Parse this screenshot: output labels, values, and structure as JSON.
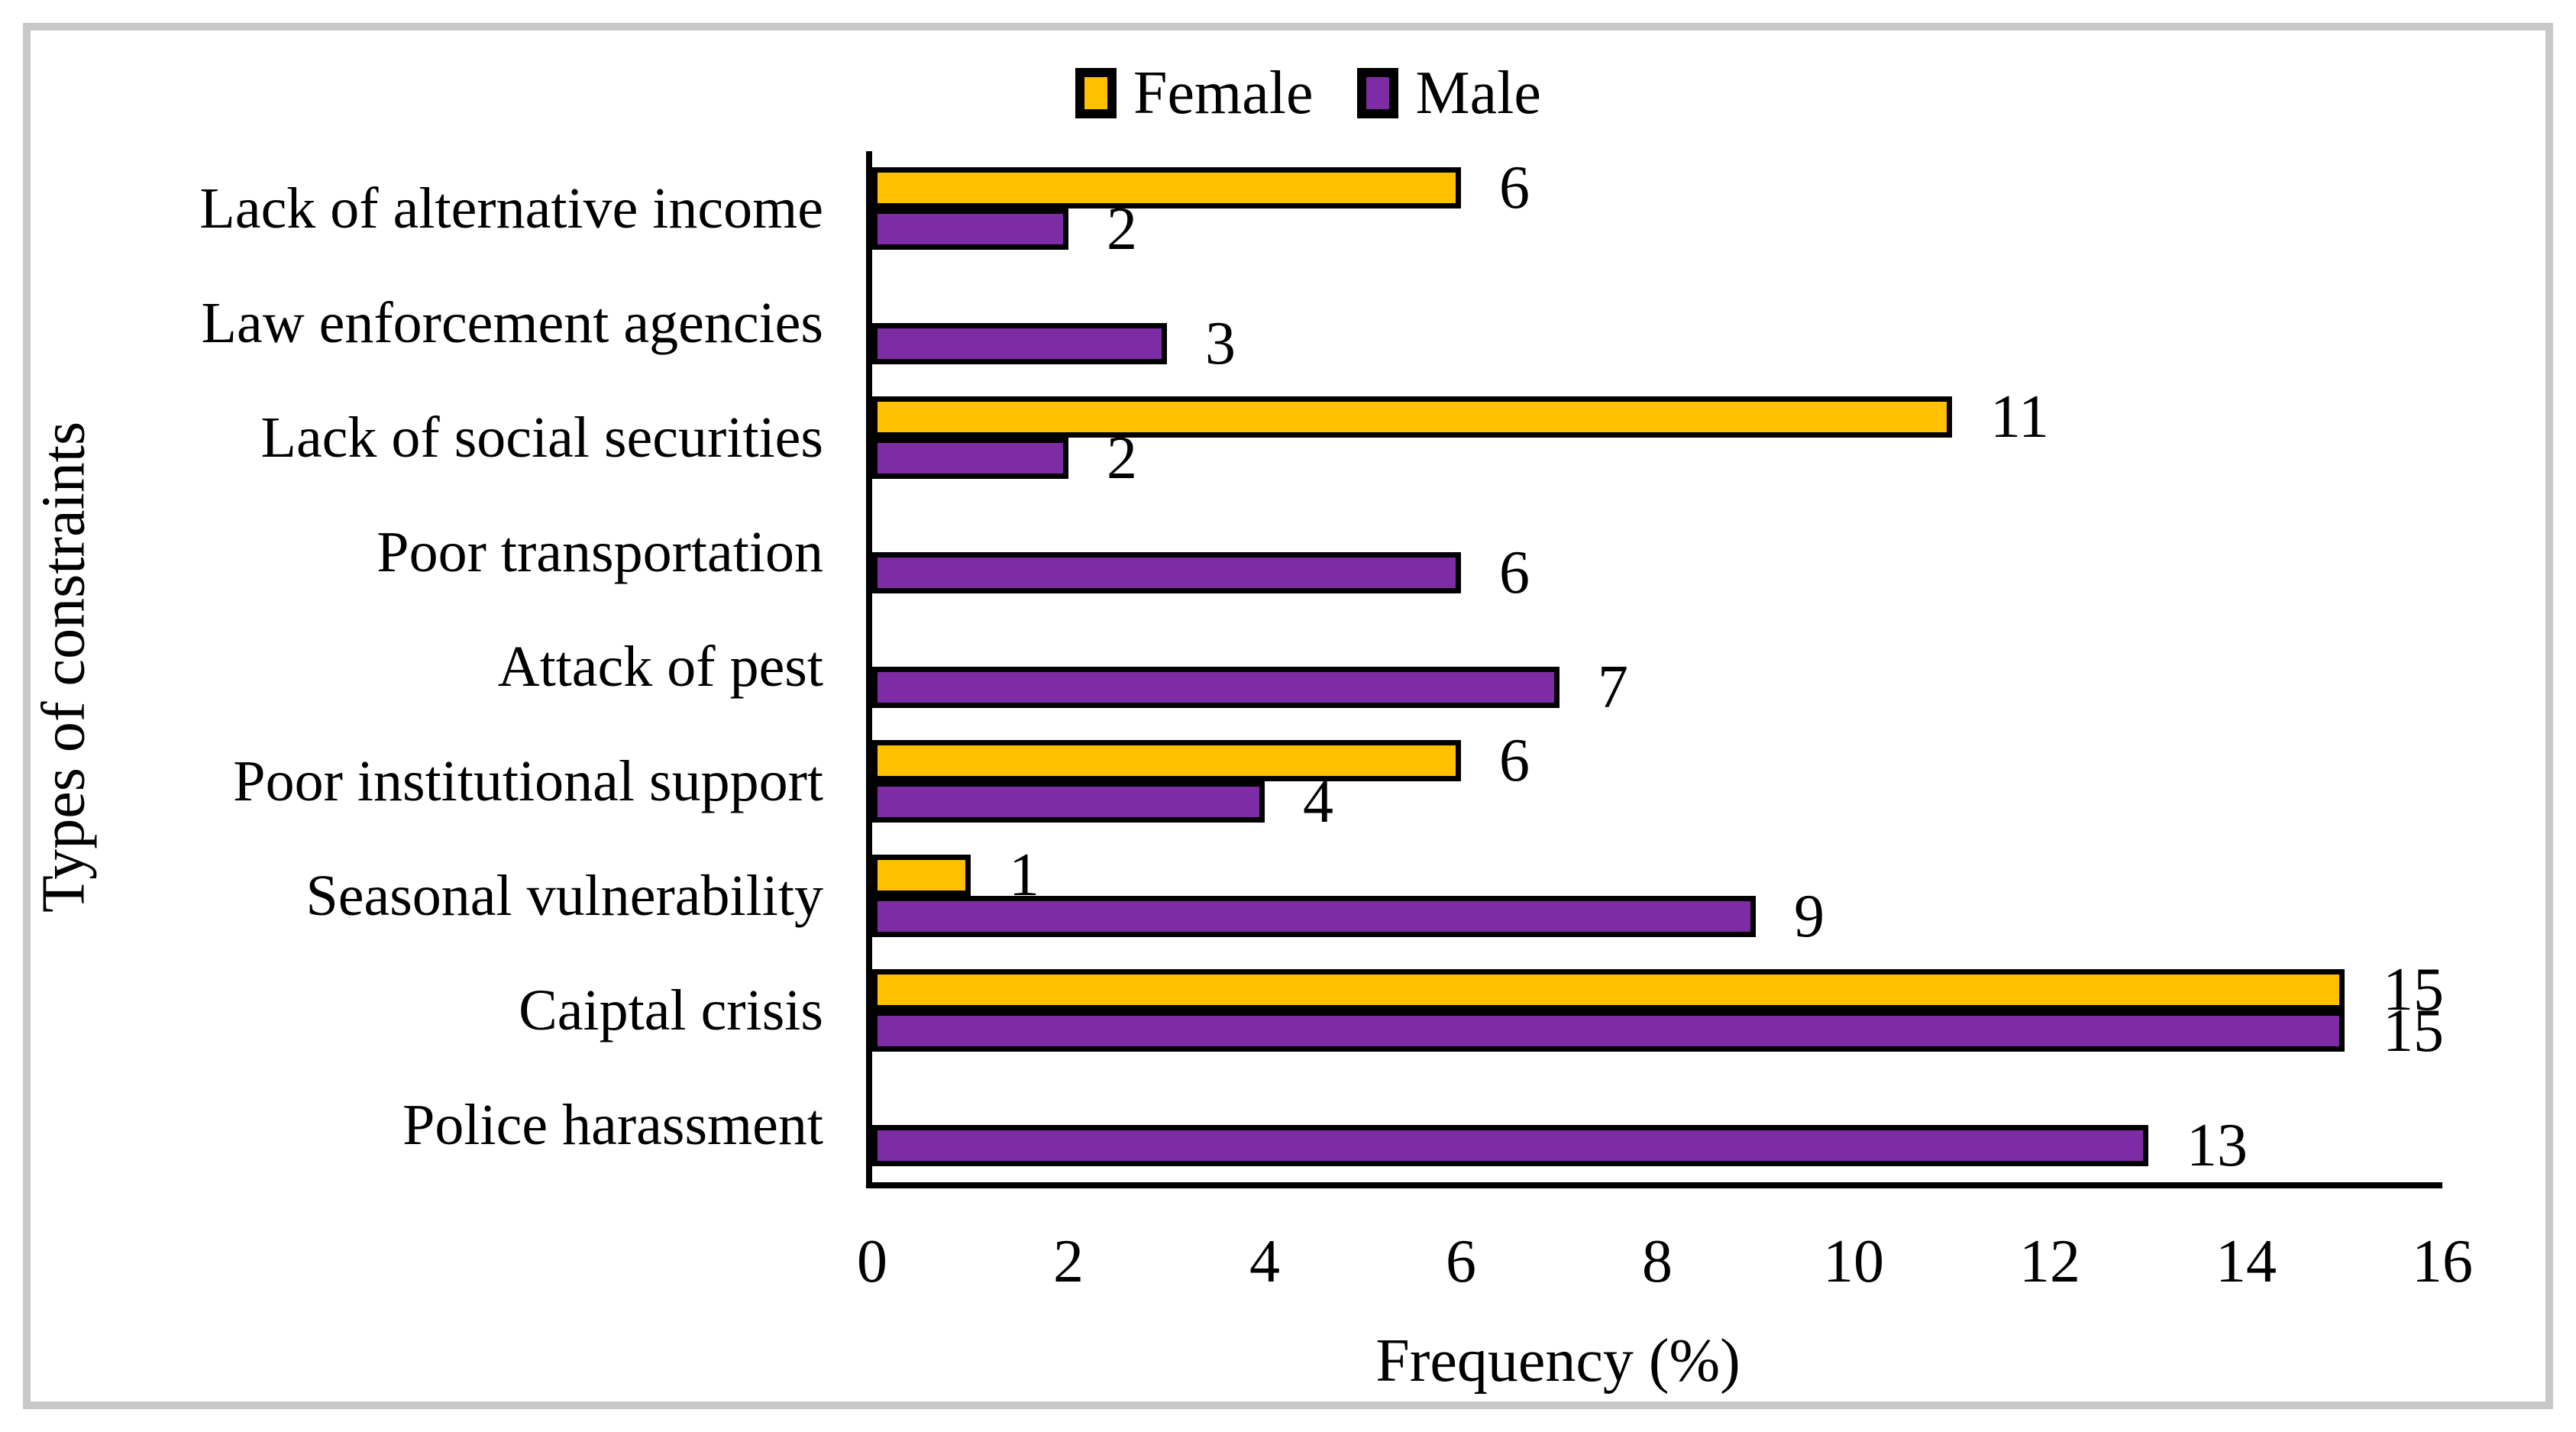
{
  "figure": {
    "x_axis": {
      "ticks": [
        "0",
        "2",
        "4",
        "6",
        "8",
        "10",
        "12",
        "14",
        "16"
      ]
    }
  },
  "chart_data": {
    "type": "bar",
    "orientation": "horizontal",
    "title": "",
    "xlabel": "Frequency (%)",
    "ylabel": "Types of constraints",
    "xlim": [
      0,
      16
    ],
    "x_tick_step": 2,
    "grid": false,
    "legend_position": "top-center",
    "data_labels": true,
    "bar_outline_color": "#000000",
    "categories": [
      "Lack of alternative income",
      "Law enforcement agencies",
      "Lack of social securities",
      "Poor transportation",
      "Attack of pest",
      "Poor institutional support",
      "Seasonal vulnerability",
      "Caiptal crisis",
      "Police harassment"
    ],
    "series": [
      {
        "name": "Female",
        "color": "#FFC000",
        "values": [
          6,
          null,
          11,
          null,
          null,
          6,
          1,
          15,
          null
        ]
      },
      {
        "name": "Male",
        "color": "#7E2CA5",
        "values": [
          2,
          3,
          2,
          6,
          7,
          4,
          9,
          15,
          13
        ]
      }
    ]
  }
}
